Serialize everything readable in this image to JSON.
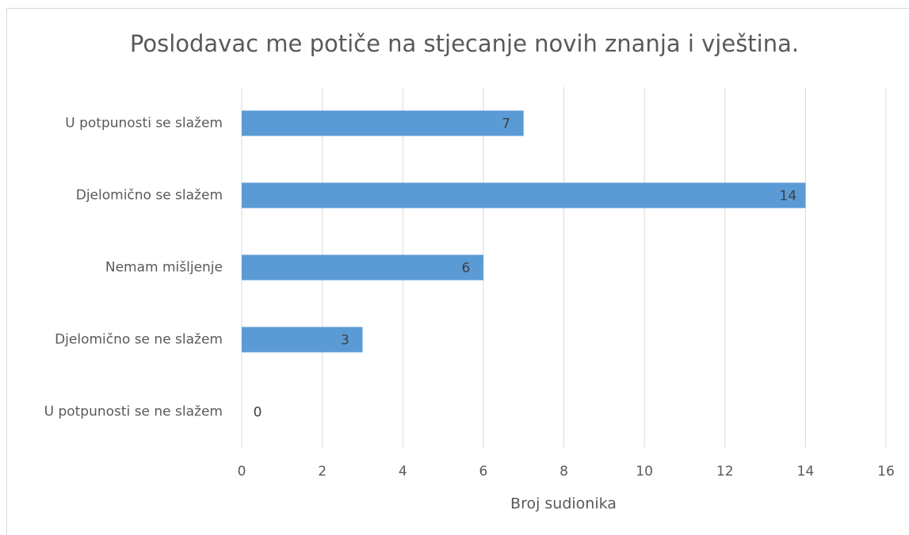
{
  "chart_data": {
    "type": "hbar",
    "title": "Poslodavac me potiče na stjecanje novih znanja i vještina.",
    "categories": [
      "U potpunosti se slažem",
      "Djelomično se slažem",
      "Nemam mišljenje",
      "Djelomično se ne slažem",
      "U potpunosti se ne slažem"
    ],
    "values": [
      7,
      14,
      6,
      3,
      0
    ],
    "color": "#5b9bd5",
    "xlim": [
      0,
      16
    ],
    "xticks": [
      0,
      2,
      4,
      6,
      8,
      10,
      12,
      14,
      16
    ],
    "xlabel": "Broj sudionika",
    "grid": true
  }
}
